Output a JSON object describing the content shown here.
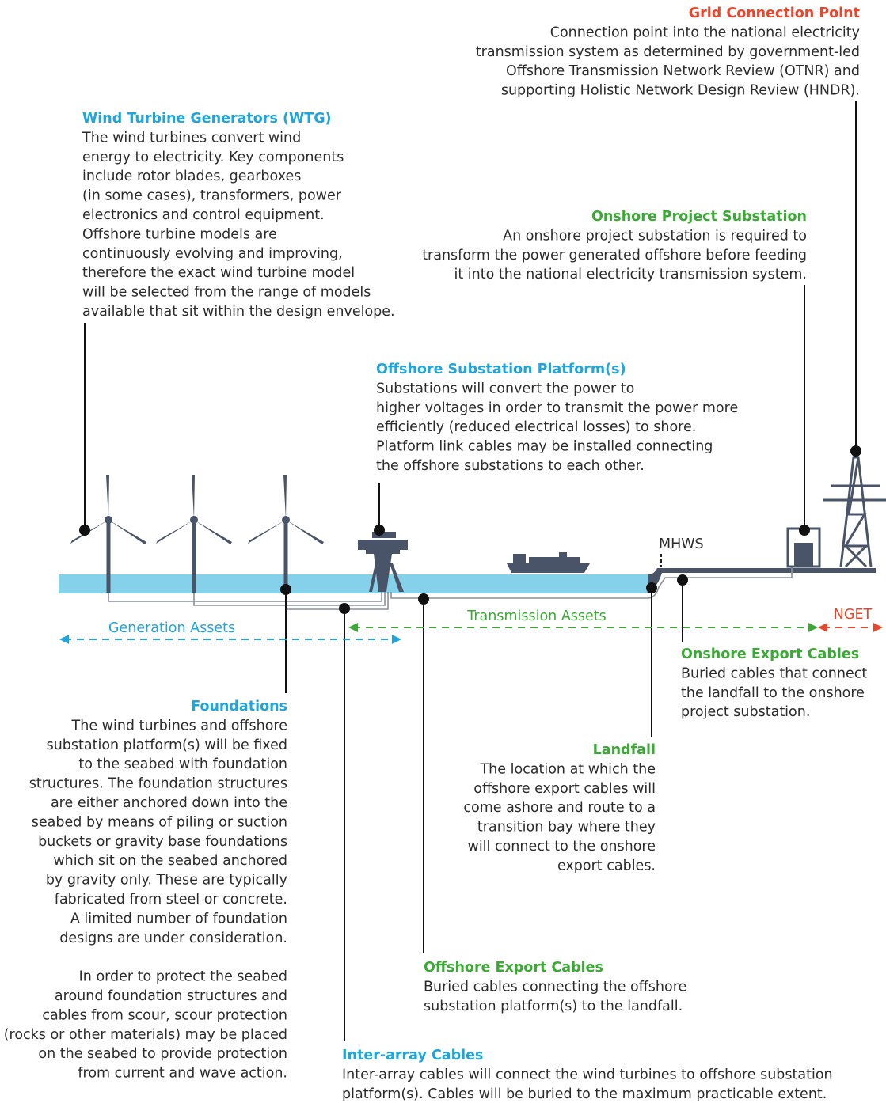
{
  "annotations": {
    "grid_connection_point": {
      "title": "Grid Connection Point",
      "paragraphs": [
        [
          "Connection point into the national electricity",
          "transmission system as determined by government-led",
          "Offshore Transmission Network Review (OTNR) and",
          "supporting Holistic Network Design Review (HNDR)."
        ]
      ]
    },
    "wind_turbine_generators": {
      "title": "Wind Turbine Generators (WTG)",
      "paragraphs": [
        [
          "The wind turbines convert wind",
          "energy to electricity. Key components",
          "include rotor blades, gearboxes",
          "(in some cases), transformers, power",
          "electronics and control equipment.",
          "Offshore turbine models are",
          "continuously evolving and improving,",
          "therefore the exact wind turbine model",
          "will be selected from the range of models",
          "available that sit within the design envelope."
        ]
      ]
    },
    "onshore_project_substation": {
      "title": "Onshore Project Substation",
      "paragraphs": [
        [
          "An onshore project substation is required to",
          "transform the power generated offshore before feeding",
          "it into the national electricity transmission system."
        ]
      ]
    },
    "offshore_substation_platforms": {
      "title": "Offshore Substation Platform(s)",
      "paragraphs": [
        [
          "Substations will convert the power to",
          "higher voltages in order to transmit the power more",
          "efficiently (reduced electrical losses) to shore.",
          "Platform link cables may be installed connecting",
          "the offshore substations to each other."
        ]
      ]
    },
    "onshore_export_cables": {
      "title": "Onshore Export Cables",
      "paragraphs": [
        [
          "Buried cables that connect",
          "the landfall to the onshore",
          "project substation."
        ]
      ]
    },
    "foundations": {
      "title": "Foundations",
      "paragraphs": [
        [
          "The wind turbines and offshore",
          "substation platform(s) will be fixed",
          "to the seabed with foundation",
          "structures. The foundation structures",
          "are either anchored down into the",
          "seabed by means of piling or suction",
          "buckets or gravity base foundations",
          "which sit on the seabed anchored",
          "by gravity only. These are typically",
          "fabricated from steel or concrete.",
          "A limited number of foundation",
          "designs are under consideration."
        ],
        [
          "In order to protect the seabed",
          "around foundation structures and",
          "cables from scour, scour protection",
          "(rocks or other materials) may be placed",
          "on the seabed to provide protection",
          "from current and wave action."
        ]
      ]
    },
    "landfall": {
      "title": "Landfall",
      "paragraphs": [
        [
          "The location at which the",
          "offshore export cables will",
          "come ashore and route to a",
          "transition bay where they",
          "will connect to the onshore",
          "export cables."
        ]
      ]
    },
    "offshore_export_cables": {
      "title": "Offshore Export Cables",
      "paragraphs": [
        [
          "Buried cables connecting the offshore",
          "substation platform(s) to the landfall."
        ]
      ]
    },
    "inter_array_cables": {
      "title": "Inter-array Cables",
      "paragraphs": [
        [
          "Inter-array cables will connect the wind turbines to offshore substation",
          "platform(s). Cables will be buried to the maximum practicable extent."
        ]
      ]
    }
  },
  "labels": {
    "mhws": "MHWS",
    "generation_assets": "Generation Assets",
    "transmission_assets": "Transmission Assets",
    "nget": "NGET"
  }
}
